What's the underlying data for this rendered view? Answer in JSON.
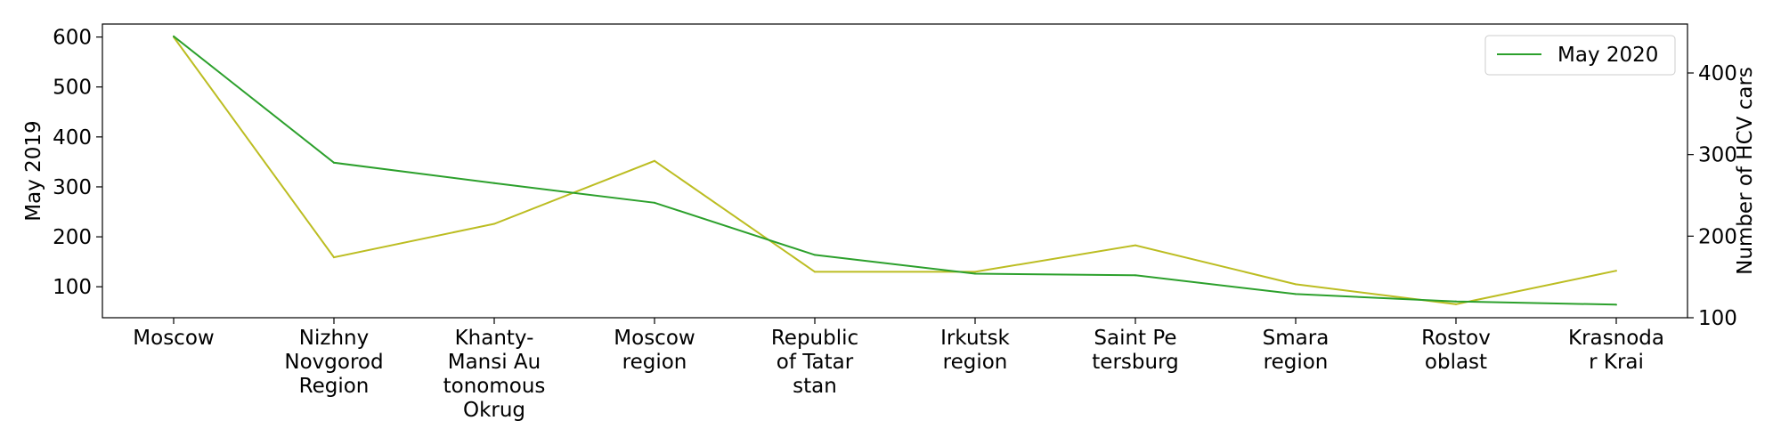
{
  "chart_data": {
    "type": "line",
    "categories": [
      [
        "Moscow"
      ],
      [
        "Nizhny",
        "Novgorod",
        "Region"
      ],
      [
        "Khanty-",
        "Mansi Au",
        "tonomous",
        "Okrug"
      ],
      [
        "Moscow",
        "region"
      ],
      [
        "Republic",
        "of Tatar",
        "stan"
      ],
      [
        "Irkutsk",
        "region"
      ],
      [
        "Saint Pe",
        "tersburg"
      ],
      [
        "Smara",
        "region"
      ],
      [
        "Rostov",
        "oblast"
      ],
      [
        "Krasnoda",
        "r Krai"
      ]
    ],
    "series": [
      {
        "name": "",
        "axis": "left",
        "color": "#bcbd22",
        "values": [
          600,
          159,
          226,
          352,
          130,
          130,
          183,
          105,
          65,
          132
        ]
      },
      {
        "name": "May 2020",
        "axis": "right",
        "color": "#2ca02c",
        "values": [
          445,
          290,
          265,
          241,
          177,
          154,
          152,
          129,
          120,
          116
        ]
      }
    ],
    "left_axis": {
      "label": "May 2019",
      "ticks": [
        100,
        200,
        300,
        400,
        500,
        600
      ],
      "ylim": [
        38,
        626
      ]
    },
    "right_axis": {
      "label": "Number of HCV cars",
      "ticks": [
        100,
        200,
        300,
        400
      ],
      "ylim": [
        100,
        460
      ]
    },
    "legend": {
      "position": "top-right",
      "entries": [
        "May 2020"
      ]
    },
    "grid": false
  }
}
